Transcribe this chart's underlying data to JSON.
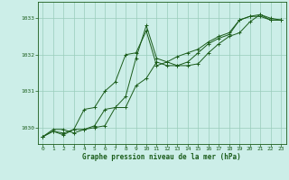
{
  "title": "Graphe pression niveau de la mer (hPa)",
  "bg_color": "#cceee8",
  "grid_color": "#99ccbb",
  "line_color": "#1a5c1a",
  "ylim": [
    1029.55,
    1033.45
  ],
  "yticks": [
    1030,
    1031,
    1032,
    1033
  ],
  "xlim": [
    -0.5,
    23.5
  ],
  "xticks": [
    0,
    1,
    2,
    3,
    4,
    5,
    6,
    7,
    8,
    9,
    10,
    11,
    12,
    13,
    14,
    15,
    16,
    17,
    18,
    19,
    20,
    21,
    22,
    23
  ],
  "series": [
    [
      1029.75,
      1029.95,
      1029.95,
      1029.85,
      1029.95,
      1030.0,
      1030.05,
      1030.55,
      1030.55,
      1031.15,
      1031.35,
      1031.8,
      1031.7,
      1031.7,
      1031.8,
      1032.05,
      1032.3,
      1032.45,
      1032.55,
      1032.95,
      1033.05,
      1033.05,
      1032.95,
      1032.95
    ],
    [
      1029.75,
      1029.9,
      1029.8,
      1029.95,
      1030.5,
      1030.55,
      1031.0,
      1031.25,
      1032.0,
      1032.05,
      1032.65,
      1031.7,
      1031.8,
      1031.95,
      1032.05,
      1032.15,
      1032.35,
      1032.5,
      1032.6,
      1032.95,
      1033.05,
      1033.1,
      1032.95,
      1032.95
    ],
    [
      1029.75,
      1029.9,
      1029.85,
      1029.95,
      1029.95,
      1030.05,
      1030.5,
      1030.55,
      1030.85,
      1031.9,
      1032.8,
      1031.9,
      1031.8,
      1031.7,
      1031.7,
      1031.75,
      1032.05,
      1032.3,
      1032.5,
      1032.6,
      1032.9,
      1033.1,
      1033.0,
      1032.95
    ]
  ]
}
